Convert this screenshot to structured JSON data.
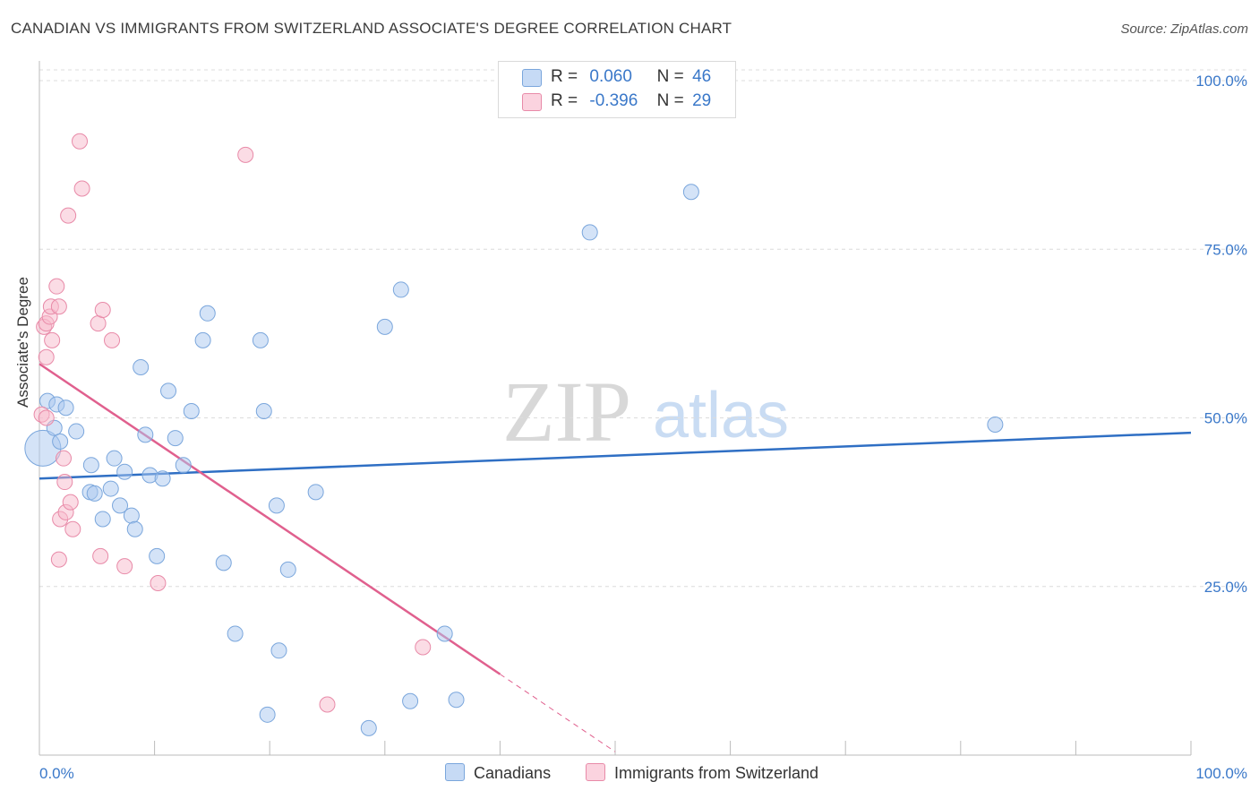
{
  "title": "CANADIAN VS IMMIGRANTS FROM SWITZERLAND ASSOCIATE'S DEGREE CORRELATION CHART",
  "source": "Source: ZipAtlas.com",
  "watermark": {
    "zip": "ZIP",
    "atlas": "atlas"
  },
  "legend": {
    "r_label": "R =",
    "n_label": "N =",
    "rows": [
      {
        "r": "0.060",
        "n": "46",
        "color": "#a9c8f0"
      },
      {
        "r": "-0.396",
        "n": "29",
        "color": "#f7b9cb"
      }
    ]
  },
  "colors": {
    "blue_fill": "#a9c8f0",
    "blue_stroke": "#7aa6dc",
    "blue_line": "#2f6fc4",
    "pink_fill": "#f7b9cb",
    "pink_stroke": "#e88aa8",
    "pink_line": "#e0608e",
    "grid": "#dcdcdc",
    "tick_text": "#3a78c9"
  },
  "chart_data": {
    "type": "scatter",
    "title": "CANADIAN VS IMMIGRANTS FROM SWITZERLAND ASSOCIATE'S DEGREE CORRELATION CHART",
    "xlabel": "",
    "ylabel": "Associate's Degree",
    "xlim": [
      0,
      100
    ],
    "ylim": [
      0,
      100
    ],
    "x_tick_labels": [
      "0.0%",
      "100.0%"
    ],
    "y_tick_labels": [
      "100.0%",
      "75.0%",
      "50.0%",
      "25.0%"
    ],
    "y_ticks": [
      100,
      75,
      50,
      25
    ],
    "grid": true,
    "legend_position": "top-center",
    "series": [
      {
        "name": "Canadians",
        "points": [
          [
            0.3,
            45.5
          ],
          [
            0.7,
            52.5
          ],
          [
            1.3,
            48.5
          ],
          [
            1.5,
            52.0
          ],
          [
            2.3,
            51.5
          ],
          [
            3.2,
            48.0
          ],
          [
            1.8,
            46.5
          ],
          [
            4.4,
            39.0
          ],
          [
            4.5,
            43.0
          ],
          [
            4.8,
            38.8
          ],
          [
            5.5,
            35.0
          ],
          [
            6.2,
            39.5
          ],
          [
            6.5,
            44.0
          ],
          [
            7.0,
            37.0
          ],
          [
            7.4,
            42.0
          ],
          [
            8.0,
            35.5
          ],
          [
            8.3,
            33.5
          ],
          [
            8.8,
            57.5
          ],
          [
            9.2,
            47.5
          ],
          [
            9.6,
            41.5
          ],
          [
            10.2,
            29.5
          ],
          [
            10.7,
            41.0
          ],
          [
            11.2,
            54.0
          ],
          [
            11.8,
            47.0
          ],
          [
            12.5,
            43.0
          ],
          [
            13.2,
            51.0
          ],
          [
            14.2,
            61.5
          ],
          [
            14.6,
            65.5
          ],
          [
            16.0,
            28.5
          ],
          [
            17.0,
            18.0
          ],
          [
            19.2,
            61.5
          ],
          [
            19.5,
            51.0
          ],
          [
            19.8,
            6.0
          ],
          [
            20.6,
            37.0
          ],
          [
            20.8,
            15.5
          ],
          [
            21.6,
            27.5
          ],
          [
            24.0,
            39.0
          ],
          [
            28.6,
            4.0
          ],
          [
            30.0,
            63.5
          ],
          [
            31.4,
            69.0
          ],
          [
            32.2,
            8.0
          ],
          [
            35.2,
            18.0
          ],
          [
            36.2,
            8.2
          ],
          [
            47.8,
            77.5
          ],
          [
            56.6,
            83.5
          ],
          [
            83.0,
            49.0
          ]
        ],
        "trend": {
          "x": [
            0,
            100
          ],
          "y": [
            41.0,
            47.8
          ]
        }
      },
      {
        "name": "Immigrants from Switzerland",
        "points": [
          [
            0.2,
            50.5
          ],
          [
            0.4,
            63.5
          ],
          [
            0.6,
            59.0
          ],
          [
            0.6,
            64.0
          ],
          [
            0.9,
            65.0
          ],
          [
            1.0,
            66.5
          ],
          [
            1.1,
            61.5
          ],
          [
            1.5,
            69.5
          ],
          [
            1.7,
            66.5
          ],
          [
            1.7,
            29.0
          ],
          [
            1.8,
            35.0
          ],
          [
            2.1,
            44.0
          ],
          [
            2.2,
            40.5
          ],
          [
            2.3,
            36.0
          ],
          [
            2.5,
            80.0
          ],
          [
            2.7,
            37.5
          ],
          [
            2.9,
            33.5
          ],
          [
            3.5,
            91.0
          ],
          [
            3.7,
            84.0
          ],
          [
            5.1,
            64.0
          ],
          [
            5.3,
            29.5
          ],
          [
            5.5,
            66.0
          ],
          [
            6.3,
            61.5
          ],
          [
            7.4,
            28.0
          ],
          [
            10.3,
            25.5
          ],
          [
            17.9,
            89.0
          ],
          [
            25.0,
            7.5
          ],
          [
            33.3,
            16.0
          ],
          [
            0.6,
            50.0
          ]
        ],
        "trend": {
          "x": [
            0,
            40
          ],
          "y": [
            58.0,
            12.0
          ],
          "dashed_extension": {
            "x": [
              40,
              50
            ],
            "y": [
              12.0,
              0.5
            ]
          }
        }
      }
    ]
  },
  "bottom_legend": [
    "Canadians",
    "Immigrants from Switzerland"
  ]
}
